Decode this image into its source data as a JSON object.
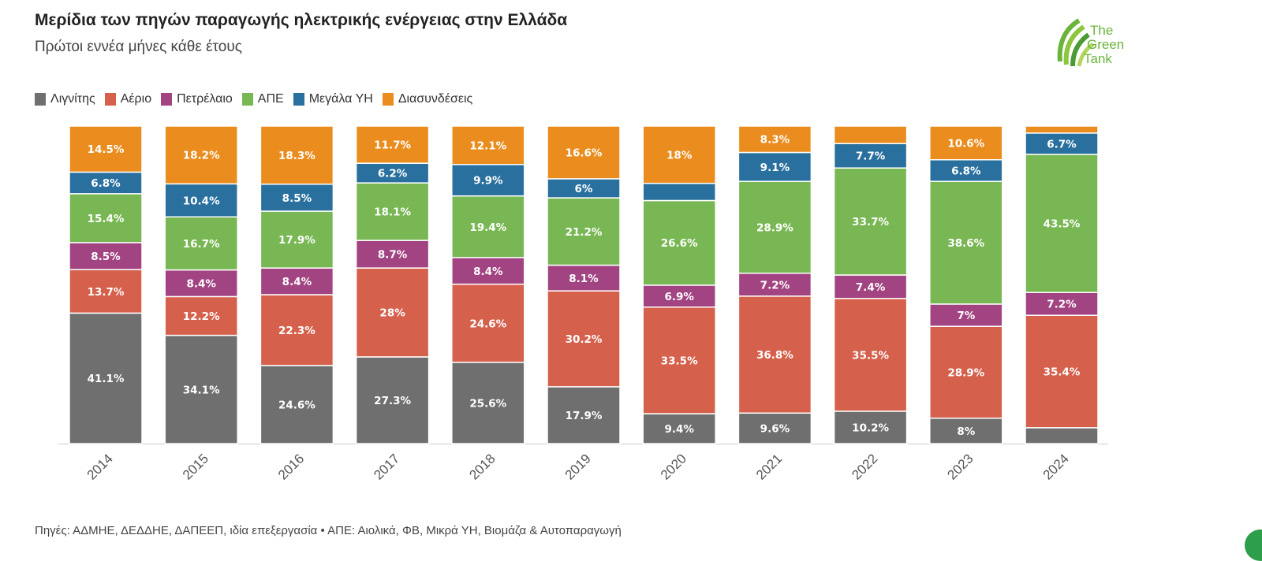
{
  "title": "Μερίδια των πηγών παραγωγής ηλεκτρικής ενέργειας στην Ελλάδα",
  "subtitle": "Πρώτοι εννέα μήνες κάθε έτους",
  "footer": "Πηγές: ΑΔΜΗΕ, ΔΕΔΔΗΕ, ΔΑΠΕΕΠ, ιδία επεξεργασία • ΑΠΕ: Αιολικά, ΦΒ, Μικρά ΥΗ, Βιομάζα & Αυτοπαραγωγή",
  "logo": {
    "line1": "The",
    "line2": "Green",
    "line3": "Tank"
  },
  "colors": {
    "lignite": "#6f6f6f",
    "gas": "#d5604c",
    "oil": "#a24382",
    "res": "#78b753",
    "hydro": "#29709e",
    "interconnections": "#ea8d1e"
  },
  "chart_data": {
    "type": "bar",
    "stacked": true,
    "ylim": [
      0,
      100
    ],
    "grid": false,
    "legend_position": "top-left",
    "categories": [
      "2014",
      "2015",
      "2016",
      "2017",
      "2018",
      "2019",
      "2020",
      "2021",
      "2022",
      "2023",
      "2024"
    ],
    "series": [
      {
        "key": "lignite",
        "name": "Λιγνίτης",
        "values": [
          41.1,
          34.1,
          24.6,
          27.3,
          25.6,
          17.9,
          9.4,
          9.6,
          10.2,
          8,
          5
        ],
        "labels": [
          "41.1%",
          "34.1%",
          "24.6%",
          "27.3%",
          "25.6%",
          "17.9%",
          "9.4%",
          "9.6%",
          "10.2%",
          "8%",
          ""
        ]
      },
      {
        "key": "gas",
        "name": "Αέριο",
        "values": [
          13.7,
          12.2,
          22.3,
          28,
          24.6,
          30.2,
          33.5,
          36.8,
          35.5,
          28.9,
          35.4
        ],
        "labels": [
          "13.7%",
          "12.2%",
          "22.3%",
          "28%",
          "24.6%",
          "30.2%",
          "33.5%",
          "36.8%",
          "35.5%",
          "28.9%",
          "35.4%"
        ]
      },
      {
        "key": "oil",
        "name": "Πετρέλαιο",
        "values": [
          8.5,
          8.4,
          8.4,
          8.7,
          8.4,
          8.1,
          6.9,
          7.2,
          7.4,
          7,
          7.2
        ],
        "labels": [
          "8.5%",
          "8.4%",
          "8.4%",
          "8.7%",
          "8.4%",
          "8.1%",
          "6.9%",
          "7.2%",
          "7.4%",
          "7%",
          "7.2%"
        ]
      },
      {
        "key": "res",
        "name": "ΑΠΕ",
        "values": [
          15.4,
          16.7,
          17.9,
          18.1,
          19.4,
          21.2,
          26.6,
          28.9,
          33.7,
          38.6,
          43.5
        ],
        "labels": [
          "15.4%",
          "16.7%",
          "17.9%",
          "18.1%",
          "19.4%",
          "21.2%",
          "26.6%",
          "28.9%",
          "33.7%",
          "38.6%",
          "43.5%"
        ]
      },
      {
        "key": "hydro",
        "name": "Μεγάλα ΥΗ",
        "values": [
          6.8,
          10.4,
          8.5,
          6.2,
          9.9,
          6,
          5.4,
          9.1,
          7.7,
          6.8,
          6.7
        ],
        "labels": [
          "6.8%",
          "10.4%",
          "8.5%",
          "6.2%",
          "9.9%",
          "6%",
          "",
          "9.1%",
          "7.7%",
          "6.8%",
          "6.7%"
        ]
      },
      {
        "key": "interconnections",
        "name": "Διασυνδέσεις",
        "values": [
          14.5,
          18.2,
          18.3,
          11.7,
          12.1,
          16.6,
          18,
          8.3,
          5.5,
          10.6,
          2.2
        ],
        "labels": [
          "14.5%",
          "18.2%",
          "18.3%",
          "11.7%",
          "12.1%",
          "16.6%",
          "18%",
          "8.3%",
          "",
          "10.6%",
          ""
        ]
      }
    ]
  }
}
